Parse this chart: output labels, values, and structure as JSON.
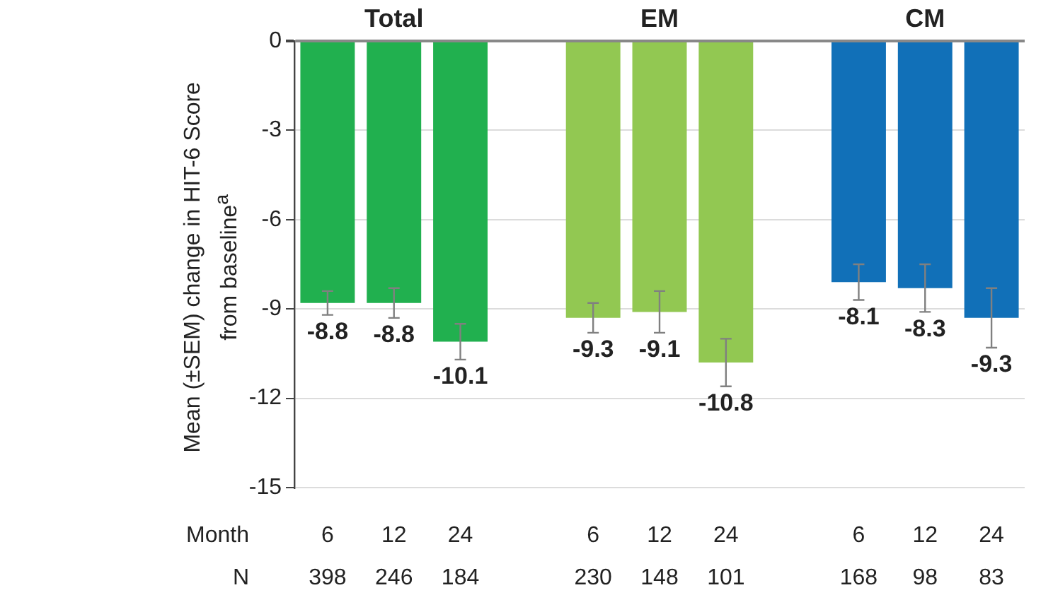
{
  "chart_data": {
    "type": "bar",
    "ylabel": "Mean (±SEM) change in HIT-6 Score from baseline$^{a}$",
    "categories": [
      "6",
      "12",
      "24",
      null,
      "6",
      "12",
      "24",
      null,
      "6",
      "12",
      "24"
    ],
    "values": [
      -8.8,
      -8.8,
      -10.1,
      null,
      -9.3,
      -9.1,
      -10.8,
      null,
      -8.1,
      -8.3,
      -9.3
    ],
    "errors": [
      0.4,
      0.5,
      0.6,
      null,
      0.5,
      0.7,
      0.8,
      null,
      0.6,
      0.8,
      1.0
    ],
    "colors": [
      "#21b04f",
      "#21b04f",
      "#21b04f",
      null,
      "#92c852",
      "#92c852",
      "#92c852",
      null,
      "#1170b8",
      "#1170b8",
      "#1170b8"
    ],
    "ylim": [
      -15,
      0
    ],
    "yticks": [
      0,
      -3,
      -6,
      -9,
      -12,
      -15
    ],
    "grid": "y",
    "data_labels": true,
    "annotations": [
      "Total",
      "EM",
      "CM",
      "Month",
      "N",
      "398",
      "246",
      "184",
      "230",
      "148",
      "101",
      "168",
      "98",
      "83"
    ]
  }
}
